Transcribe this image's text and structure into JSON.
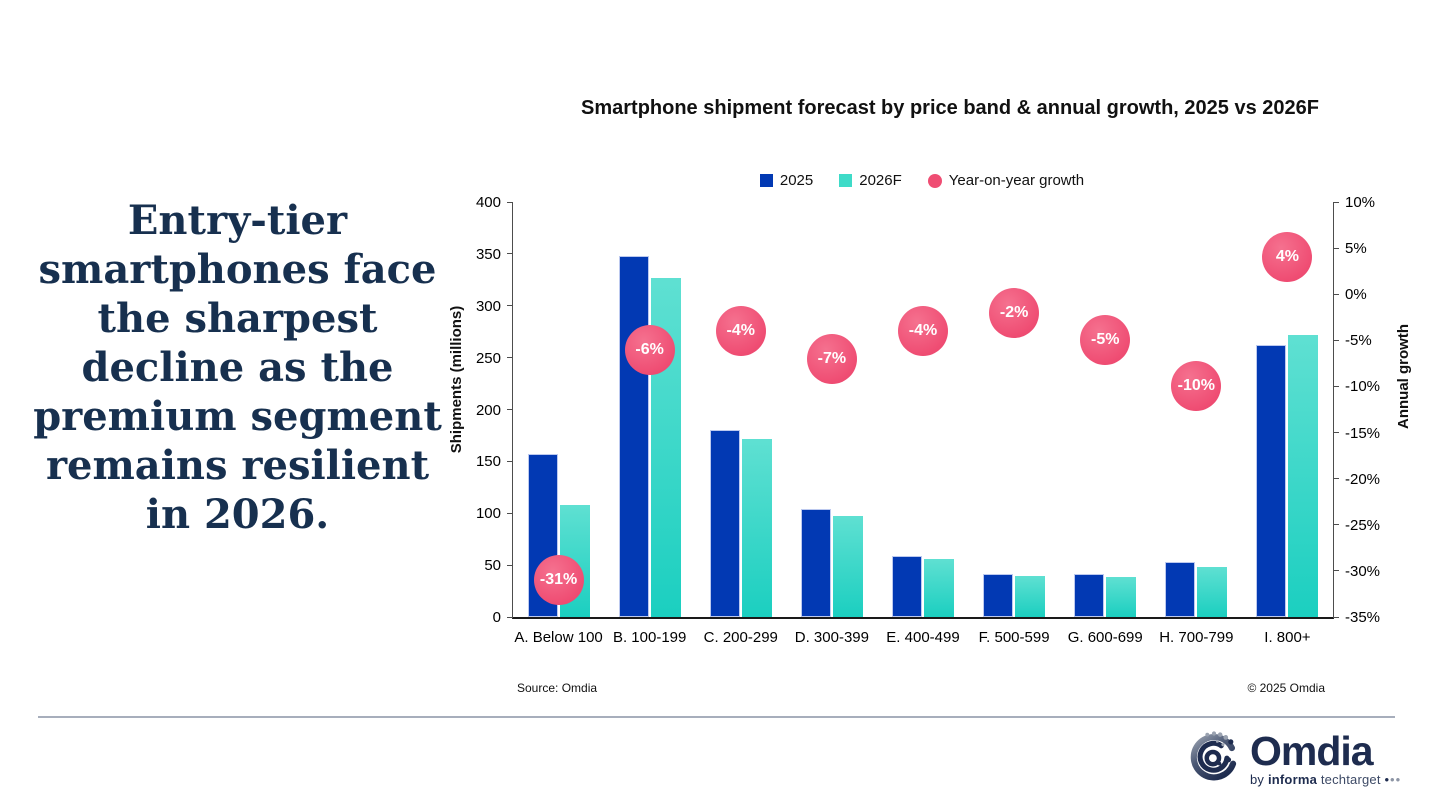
{
  "headline": "Entry-tier smartphones face the sharpest decline as the premium segment remains resilient in 2026.",
  "chart_data": {
    "type": "bar",
    "title": "Smartphone shipment forecast by price band & annual growth, 2025 vs 2026F",
    "categories": [
      "A. Below 100",
      "B. 100-199",
      "C. 200-299",
      "D. 300-399",
      "E. 400-499",
      "F. 500-599",
      "G. 600-699",
      "H. 700-799",
      "I. 800+"
    ],
    "series": [
      {
        "name": "2025",
        "color": "#0239b3",
        "values": [
          157,
          348,
          180,
          104,
          59,
          41,
          41,
          53,
          262
        ]
      },
      {
        "name": "2026F",
        "color_top": "#5fe0d2",
        "color_bottom": "#1bcfc0",
        "color": "#3edbc8",
        "values": [
          108,
          327,
          172,
          97,
          56,
          40,
          39,
          48,
          272
        ]
      }
    ],
    "growth": {
      "name": "Year-on-year growth",
      "color": "#ef4d73",
      "values": [
        -31,
        -6,
        -4,
        -7,
        -4,
        -2,
        -5,
        -10,
        4
      ],
      "labels": [
        "-31%",
        "-6%",
        "-4%",
        "-7%",
        "-4%",
        "-2%",
        "-5%",
        "-10%",
        "4%"
      ]
    },
    "ylabel_left": "Shipments (millions)",
    "ylabel_right": "Annual growth",
    "ylim_left": [
      0,
      400
    ],
    "yticks_left": [
      "400",
      "350",
      "300",
      "250",
      "200",
      "150",
      "100",
      "50",
      "0"
    ],
    "ylim_right": [
      -35,
      10
    ],
    "yticks_right": [
      "10%",
      "5%",
      "0%",
      "-5%",
      "-10%",
      "-15%",
      "-20%",
      "-25%",
      "-30%",
      "-35%"
    ],
    "grid": false,
    "legend_position": "top"
  },
  "footer": {
    "source": "Source: Omdia",
    "copyright": "© 2025 Omdia"
  },
  "logo": {
    "word": "Omdia",
    "by": "by",
    "informa": "informa",
    "techtarget": "techtarget",
    "dots": "•••"
  }
}
